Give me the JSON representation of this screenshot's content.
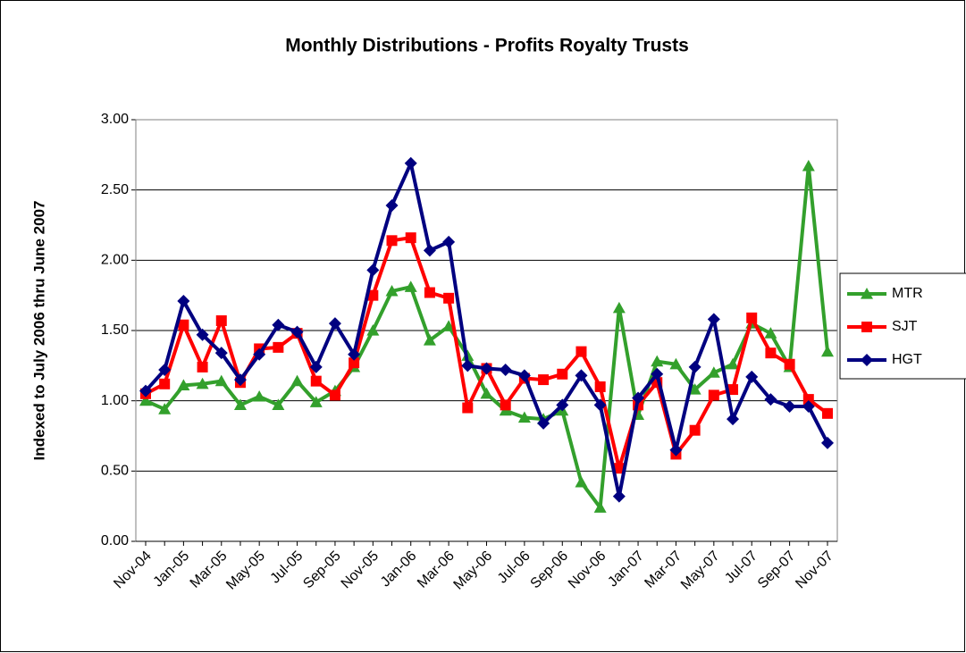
{
  "chart_data": {
    "type": "line",
    "title": "Monthly Distributions - Profits Royalty Trusts",
    "y_label": "Indexed to July 2006 thru June 2007",
    "categories": [
      "Nov-04",
      null,
      "Jan-05",
      null,
      "Mar-05",
      null,
      "May-05",
      null,
      "Jul-05",
      null,
      "Sep-05",
      null,
      "Nov-05",
      null,
      "Jan-06",
      null,
      "Mar-06",
      null,
      "May-06",
      null,
      "Jul-06",
      null,
      "Sep-06",
      null,
      "Nov-06",
      null,
      "Jan-07",
      null,
      "Mar-07",
      null,
      "May-07",
      null,
      "Jul-07",
      null,
      "Sep-07",
      null,
      "Nov-07"
    ],
    "series": [
      {
        "name": "MTR",
        "color": "#33a02c",
        "marker": "triangle",
        "values": [
          1.0,
          0.94,
          1.11,
          1.12,
          1.14,
          0.97,
          1.03,
          0.97,
          1.14,
          0.99,
          1.07,
          1.24,
          1.5,
          1.78,
          1.81,
          1.43,
          1.53,
          1.32,
          1.05,
          0.93,
          0.88,
          0.87,
          0.93,
          0.42,
          0.24,
          1.66,
          0.9,
          1.28,
          1.26,
          1.08,
          1.2,
          1.26,
          1.55,
          1.48,
          1.24,
          2.67,
          1.35
        ]
      },
      {
        "name": "SJT",
        "color": "#ff0000",
        "marker": "square",
        "values": [
          1.05,
          1.12,
          1.54,
          1.24,
          1.57,
          1.13,
          1.37,
          1.38,
          1.48,
          1.14,
          1.04,
          1.27,
          1.75,
          2.14,
          2.16,
          1.77,
          1.73,
          0.95,
          1.23,
          0.97,
          1.16,
          1.15,
          1.19,
          1.35,
          1.1,
          0.52,
          0.97,
          1.13,
          0.62,
          0.79,
          1.04,
          1.08,
          1.59,
          1.34,
          1.26,
          1.01,
          0.91
        ]
      },
      {
        "name": "HGT",
        "color": "#000080",
        "marker": "diamond",
        "values": [
          1.07,
          1.22,
          1.71,
          1.47,
          1.34,
          1.15,
          1.33,
          1.54,
          1.49,
          1.24,
          1.55,
          1.33,
          1.93,
          2.39,
          2.69,
          2.07,
          2.13,
          1.25,
          1.23,
          1.22,
          1.18,
          0.84,
          0.97,
          1.18,
          0.97,
          0.32,
          1.02,
          1.19,
          0.65,
          1.24,
          1.58,
          0.87,
          1.17,
          1.01,
          0.96,
          0.96,
          0.7
        ]
      }
    ],
    "ylim": [
      0,
      3
    ],
    "yticks": [
      {
        "value": 0,
        "label": "0.00"
      },
      {
        "value": 0.5,
        "label": "0.50"
      },
      {
        "value": 1,
        "label": "1.00"
      },
      {
        "value": 1.5,
        "label": "1.50"
      },
      {
        "value": 2,
        "label": "2.00"
      },
      {
        "value": 2.5,
        "label": "2.50"
      },
      {
        "value": 3,
        "label": "3.00"
      }
    ],
    "grid": true,
    "legend": "right"
  }
}
